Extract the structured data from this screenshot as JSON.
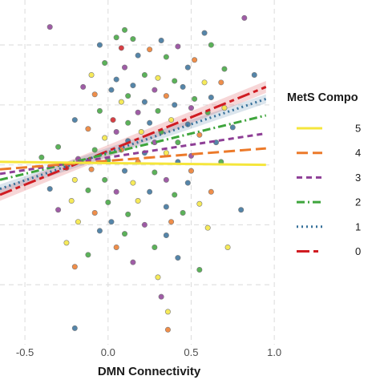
{
  "chart_data": {
    "type": "scatter",
    "xlabel": "DMN Connectivity",
    "ylabel": "",
    "xlim": [
      -0.65,
      0.98
    ],
    "ylim": [
      -1.2,
      1.1
    ],
    "x_ticks": [
      -0.5,
      0.0,
      0.5,
      1.0
    ],
    "x_tick_labels": [
      "-0.5",
      "0.0",
      "0.5",
      "1.0"
    ],
    "y_gridlines": [
      -0.8,
      -0.4,
      0.0,
      0.4,
      0.8
    ],
    "grid": true,
    "legend": {
      "title": "MetS Compo",
      "position": "right",
      "entries": [
        {
          "label": "5",
          "color": "#f5e63c",
          "dash": "solid"
        },
        {
          "label": "4",
          "color": "#ec7a2a",
          "dash": "long-dash"
        },
        {
          "label": "3",
          "color": "#8e3f96",
          "dash": "dashed"
        },
        {
          "label": "2",
          "color": "#3ea53c",
          "dash": "dash-dot"
        },
        {
          "label": "1",
          "color": "#36709a",
          "dash": "dotted"
        },
        {
          "label": "0",
          "color": "#d01c22",
          "dash": "two-dash"
        }
      ]
    },
    "series": [
      {
        "name": "0",
        "color": "#d01c22",
        "fit": {
          "x0": -0.65,
          "y0": -0.2,
          "x1": 0.95,
          "y1": 0.52
        },
        "band_half_width": [
          0.04,
          0.04
        ]
      },
      {
        "name": "1",
        "color": "#36709a",
        "fit": {
          "x0": -0.65,
          "y0": -0.16,
          "x1": 0.95,
          "y1": 0.44
        },
        "band_half_width": [
          0.03,
          0.03
        ]
      },
      {
        "name": "2",
        "color": "#3ea53c",
        "fit": {
          "x0": -0.65,
          "y0": -0.1,
          "x1": 0.95,
          "y1": 0.33
        }
      },
      {
        "name": "3",
        "color": "#8e3f96",
        "fit": {
          "x0": -0.65,
          "y0": -0.06,
          "x1": 0.95,
          "y1": 0.21
        }
      },
      {
        "name": "4",
        "color": "#ec7a2a",
        "fit": {
          "x0": -0.65,
          "y0": -0.03,
          "x1": 0.95,
          "y1": 0.11
        }
      },
      {
        "name": "5",
        "color": "#f5e63c",
        "fit": {
          "x0": -0.65,
          "y0": 0.02,
          "x1": 0.95,
          "y1": 0.0
        }
      }
    ],
    "points": [
      {
        "x": 0.82,
        "y": 0.98,
        "c": 3
      },
      {
        "x": -0.35,
        "y": 0.92,
        "c": 3
      },
      {
        "x": 0.05,
        "y": 0.85,
        "c": 2
      },
      {
        "x": 0.15,
        "y": 0.84,
        "c": 2
      },
      {
        "x": 0.32,
        "y": 0.83,
        "c": 1
      },
      {
        "x": -0.05,
        "y": 0.8,
        "c": 1
      },
      {
        "x": 0.08,
        "y": 0.78,
        "c": 0
      },
      {
        "x": 0.25,
        "y": 0.77,
        "c": 4
      },
      {
        "x": 0.42,
        "y": 0.79,
        "c": 3
      },
      {
        "x": 0.62,
        "y": 0.8,
        "c": 2
      },
      {
        "x": 0.18,
        "y": 0.73,
        "c": 1
      },
      {
        "x": 0.35,
        "y": 0.72,
        "c": 2
      },
      {
        "x": 0.52,
        "y": 0.7,
        "c": 4
      },
      {
        "x": 0.48,
        "y": 0.65,
        "c": 1
      },
      {
        "x": -0.02,
        "y": 0.68,
        "c": 2
      },
      {
        "x": 0.1,
        "y": 0.65,
        "c": 3
      },
      {
        "x": 0.7,
        "y": 0.64,
        "c": 2
      },
      {
        "x": -0.1,
        "y": 0.6,
        "c": 5
      },
      {
        "x": 0.22,
        "y": 0.6,
        "c": 2
      },
      {
        "x": 0.3,
        "y": 0.58,
        "c": 5
      },
      {
        "x": 0.05,
        "y": 0.57,
        "c": 1
      },
      {
        "x": 0.4,
        "y": 0.56,
        "c": 2
      },
      {
        "x": 0.58,
        "y": 0.55,
        "c": 5
      },
      {
        "x": 0.68,
        "y": 0.55,
        "c": 4
      },
      {
        "x": 0.15,
        "y": 0.53,
        "c": 1
      },
      {
        "x": 0.02,
        "y": 0.5,
        "c": 1
      },
      {
        "x": 0.28,
        "y": 0.5,
        "c": 3
      },
      {
        "x": 0.45,
        "y": 0.52,
        "c": 1
      },
      {
        "x": -0.08,
        "y": 0.47,
        "c": 4
      },
      {
        "x": 0.12,
        "y": 0.46,
        "c": 2
      },
      {
        "x": 0.35,
        "y": 0.46,
        "c": 4
      },
      {
        "x": 0.52,
        "y": 0.44,
        "c": 2
      },
      {
        "x": 0.62,
        "y": 0.45,
        "c": 1
      },
      {
        "x": 0.08,
        "y": 0.42,
        "c": 5
      },
      {
        "x": 0.22,
        "y": 0.42,
        "c": 1
      },
      {
        "x": 0.4,
        "y": 0.4,
        "c": 1
      },
      {
        "x": 0.5,
        "y": 0.38,
        "c": 3
      },
      {
        "x": -0.05,
        "y": 0.36,
        "c": 2
      },
      {
        "x": 0.18,
        "y": 0.35,
        "c": 3
      },
      {
        "x": 0.3,
        "y": 0.36,
        "c": 2
      },
      {
        "x": 0.6,
        "y": 0.35,
        "c": 2
      },
      {
        "x": 0.7,
        "y": 0.38,
        "c": 5
      },
      {
        "x": -0.2,
        "y": 0.3,
        "c": 1
      },
      {
        "x": 0.03,
        "y": 0.3,
        "c": 0
      },
      {
        "x": 0.12,
        "y": 0.28,
        "c": 2
      },
      {
        "x": 0.25,
        "y": 0.28,
        "c": 1
      },
      {
        "x": 0.38,
        "y": 0.3,
        "c": 5
      },
      {
        "x": 0.48,
        "y": 0.27,
        "c": 1
      },
      {
        "x": -0.12,
        "y": 0.24,
        "c": 4
      },
      {
        "x": 0.05,
        "y": 0.22,
        "c": 3
      },
      {
        "x": 0.2,
        "y": 0.22,
        "c": 5
      },
      {
        "x": 0.32,
        "y": 0.22,
        "c": 2
      },
      {
        "x": 0.55,
        "y": 0.2,
        "c": 4
      },
      {
        "x": -0.02,
        "y": 0.18,
        "c": 5
      },
      {
        "x": 0.12,
        "y": 0.16,
        "c": 1
      },
      {
        "x": 0.28,
        "y": 0.15,
        "c": 3
      },
      {
        "x": 0.42,
        "y": 0.15,
        "c": 2
      },
      {
        "x": 0.65,
        "y": 0.15,
        "c": 1
      },
      {
        "x": -0.3,
        "y": 0.12,
        "c": 2
      },
      {
        "x": -0.08,
        "y": 0.1,
        "c": 2
      },
      {
        "x": 0.08,
        "y": 0.1,
        "c": 4
      },
      {
        "x": 0.22,
        "y": 0.08,
        "c": 1
      },
      {
        "x": 0.35,
        "y": 0.08,
        "c": 5
      },
      {
        "x": 0.5,
        "y": 0.06,
        "c": 3
      },
      {
        "x": -0.18,
        "y": 0.04,
        "c": 3
      },
      {
        "x": 0.0,
        "y": 0.03,
        "c": 2
      },
      {
        "x": 0.18,
        "y": 0.02,
        "c": 4
      },
      {
        "x": 0.42,
        "y": 0.02,
        "c": 1
      },
      {
        "x": 0.68,
        "y": 0.02,
        "c": 2
      },
      {
        "x": -0.25,
        "y": -0.02,
        "c": 0
      },
      {
        "x": -0.1,
        "y": -0.03,
        "c": 4
      },
      {
        "x": 0.1,
        "y": -0.04,
        "c": 1
      },
      {
        "x": 0.28,
        "y": -0.05,
        "c": 2
      },
      {
        "x": 0.5,
        "y": -0.04,
        "c": 4
      },
      {
        "x": -0.2,
        "y": -0.1,
        "c": 5
      },
      {
        "x": -0.02,
        "y": -0.1,
        "c": 2
      },
      {
        "x": 0.15,
        "y": -0.12,
        "c": 5
      },
      {
        "x": 0.35,
        "y": -0.1,
        "c": 3
      },
      {
        "x": 0.48,
        "y": -0.12,
        "c": 1
      },
      {
        "x": -0.35,
        "y": -0.16,
        "c": 1
      },
      {
        "x": -0.12,
        "y": -0.17,
        "c": 2
      },
      {
        "x": 0.05,
        "y": -0.18,
        "c": 3
      },
      {
        "x": 0.25,
        "y": -0.18,
        "c": 1
      },
      {
        "x": 0.4,
        "y": -0.2,
        "c": 2
      },
      {
        "x": 0.62,
        "y": -0.18,
        "c": 4
      },
      {
        "x": -0.22,
        "y": -0.24,
        "c": 5
      },
      {
        "x": 0.0,
        "y": -0.25,
        "c": 2
      },
      {
        "x": 0.18,
        "y": -0.24,
        "c": 5
      },
      {
        "x": 0.35,
        "y": -0.28,
        "c": 1
      },
      {
        "x": 0.55,
        "y": -0.26,
        "c": 5
      },
      {
        "x": -0.3,
        "y": -0.3,
        "c": 3
      },
      {
        "x": -0.08,
        "y": -0.32,
        "c": 4
      },
      {
        "x": 0.12,
        "y": -0.33,
        "c": 2
      },
      {
        "x": 0.45,
        "y": -0.32,
        "c": 2
      },
      {
        "x": 0.8,
        "y": -0.3,
        "c": 1
      },
      {
        "x": -0.18,
        "y": -0.38,
        "c": 5
      },
      {
        "x": 0.02,
        "y": -0.38,
        "c": 1
      },
      {
        "x": 0.22,
        "y": -0.4,
        "c": 3
      },
      {
        "x": 0.38,
        "y": -0.38,
        "c": 4
      },
      {
        "x": -0.05,
        "y": -0.44,
        "c": 1
      },
      {
        "x": 0.1,
        "y": -0.46,
        "c": 2
      },
      {
        "x": 0.35,
        "y": -0.47,
        "c": 1
      },
      {
        "x": 0.6,
        "y": -0.42,
        "c": 5
      },
      {
        "x": -0.25,
        "y": -0.52,
        "c": 5
      },
      {
        "x": 0.05,
        "y": -0.55,
        "c": 4
      },
      {
        "x": 0.28,
        "y": -0.55,
        "c": 2
      },
      {
        "x": -0.12,
        "y": -0.6,
        "c": 2
      },
      {
        "x": 0.42,
        "y": -0.62,
        "c": 1
      },
      {
        "x": 0.15,
        "y": -0.65,
        "c": 3
      },
      {
        "x": -0.2,
        "y": -0.68,
        "c": 4
      },
      {
        "x": 0.72,
        "y": -0.55,
        "c": 5
      },
      {
        "x": 0.55,
        "y": -0.7,
        "c": 2
      },
      {
        "x": 0.3,
        "y": -0.75,
        "c": 5
      },
      {
        "x": 0.32,
        "y": -0.88,
        "c": 3
      },
      {
        "x": 0.36,
        "y": -0.98,
        "c": 5
      },
      {
        "x": 0.36,
        "y": -1.1,
        "c": 4
      },
      {
        "x": -0.2,
        "y": -1.09,
        "c": 1
      },
      {
        "x": 0.1,
        "y": 0.9,
        "c": 2
      },
      {
        "x": 0.58,
        "y": 0.88,
        "c": 1
      },
      {
        "x": -0.15,
        "y": 0.52,
        "c": 3
      },
      {
        "x": 0.75,
        "y": 0.25,
        "c": 1
      },
      {
        "x": -0.4,
        "y": 0.05,
        "c": 2
      },
      {
        "x": 0.88,
        "y": 0.6,
        "c": 1
      }
    ]
  }
}
